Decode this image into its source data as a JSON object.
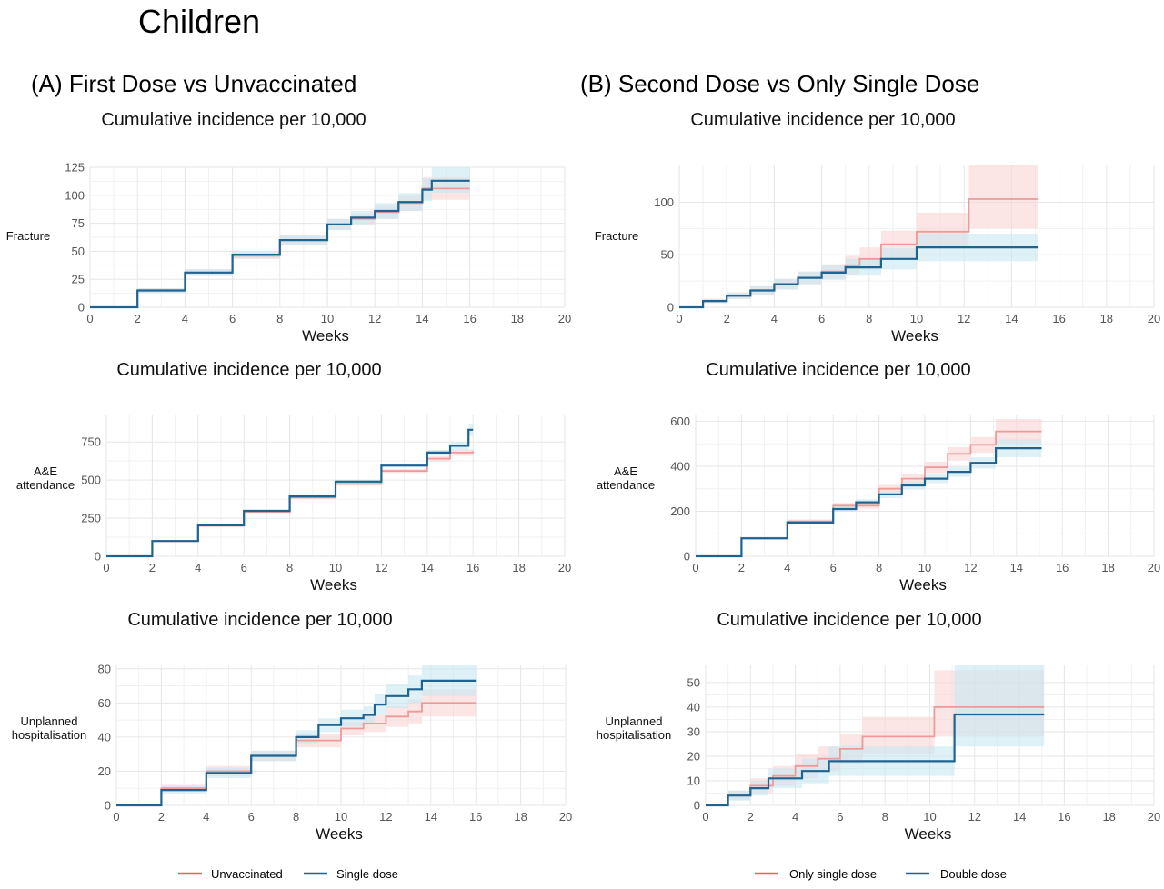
{
  "figure": {
    "title": "Children",
    "panels": [
      {
        "title": "(A) First Dose vs Unvaccinated"
      },
      {
        "title": "(B) Second Dose vs Only Single Dose"
      }
    ],
    "legends": [
      {
        "items": [
          {
            "label": "Unvaccinated",
            "color": "#e06666"
          },
          {
            "label": "Single dose",
            "color": "#1f6391"
          }
        ]
      },
      {
        "items": [
          {
            "label": "Only single dose",
            "color": "#e06666"
          },
          {
            "label": "Double dose",
            "color": "#1f6391"
          }
        ]
      }
    ]
  },
  "colors": {
    "red_line": "#ee9a9a",
    "red_band": "#f9d3d3",
    "blue_line": "#1f6391",
    "blue_band": "#c6e8f2",
    "grid": "#e6e6e6",
    "legend_red": "#e06666",
    "legend_blue": "#1f6391"
  },
  "chart_data": [
    {
      "type": "line",
      "step": true,
      "title": "Cumulative incidence per 10,000",
      "xlabel": "Weeks",
      "ylabel": "Fracture",
      "xlim": [
        0,
        20
      ],
      "ylim": [
        0,
        125
      ],
      "xticks": [
        0,
        2,
        4,
        6,
        8,
        10,
        12,
        14,
        16,
        18,
        20
      ],
      "yticks": [
        0,
        25,
        50,
        75,
        100,
        125
      ],
      "series": [
        {
          "name": "Unvaccinated",
          "color": "red",
          "x": [
            0,
            2,
            4,
            6,
            8,
            10,
            11,
            12,
            13,
            14,
            16
          ],
          "y": [
            0,
            15,
            31,
            46,
            60,
            74,
            79,
            85,
            93,
            106,
            106
          ],
          "lo": [
            0,
            13,
            28,
            43,
            56,
            69,
            74,
            79,
            86,
            96,
            96
          ],
          "hi": [
            0,
            17,
            34,
            49,
            64,
            79,
            84,
            91,
            100,
            116,
            116
          ]
        },
        {
          "name": "Single dose",
          "color": "blue",
          "x": [
            0,
            2,
            4,
            6,
            8,
            10,
            11,
            12,
            13,
            14,
            14.4,
            16
          ],
          "y": [
            0,
            15,
            31,
            47,
            60,
            74,
            80,
            86,
            94,
            105,
            113,
            113
          ],
          "lo": [
            0,
            13,
            28,
            44,
            56,
            69,
            74,
            79,
            86,
            95,
            102,
            102
          ],
          "hi": [
            0,
            17,
            34,
            50,
            64,
            79,
            86,
            93,
            102,
            115,
            125,
            125
          ]
        }
      ]
    },
    {
      "type": "line",
      "step": true,
      "title": "Cumulative incidence per 10,000",
      "xlabel": "Weeks",
      "ylabel": "Fracture",
      "xlim": [
        0,
        20
      ],
      "ylim": [
        0,
        135
      ],
      "xticks": [
        0,
        2,
        4,
        6,
        8,
        10,
        12,
        14,
        16,
        18,
        20
      ],
      "yticks": [
        0,
        50,
        100
      ],
      "series": [
        {
          "name": "Only single dose",
          "color": "red",
          "x": [
            0,
            1,
            2,
            3,
            4,
            5,
            6,
            7,
            7.6,
            8.5,
            10,
            12.2,
            15.1
          ],
          "y": [
            0,
            6,
            11,
            16,
            22,
            28,
            34,
            40,
            46,
            60,
            72,
            103,
            103
          ],
          "lo": [
            0,
            4,
            8,
            12,
            17,
            22,
            27,
            31,
            36,
            47,
            56,
            75,
            75
          ],
          "hi": [
            0,
            8,
            14,
            20,
            27,
            34,
            41,
            49,
            57,
            73,
            90,
            135,
            135
          ]
        },
        {
          "name": "Double dose",
          "color": "blue",
          "x": [
            0,
            1,
            2,
            3,
            4,
            5,
            6,
            7,
            8.5,
            10,
            15.1
          ],
          "y": [
            0,
            6,
            11,
            16,
            22,
            28,
            33,
            38,
            46,
            57,
            57
          ],
          "lo": [
            0,
            4,
            8,
            12,
            17,
            22,
            26,
            30,
            36,
            44,
            44
          ],
          "hi": [
            0,
            8,
            14,
            20,
            27,
            34,
            40,
            46,
            56,
            70,
            70
          ]
        }
      ]
    },
    {
      "type": "line",
      "step": true,
      "title": "Cumulative incidence per 10,000",
      "xlabel": "Weeks",
      "ylabel": "A&E attendance",
      "xlim": [
        0,
        20
      ],
      "ylim": [
        0,
        930
      ],
      "xticks": [
        0,
        2,
        4,
        6,
        8,
        10,
        12,
        14,
        16,
        18,
        20
      ],
      "yticks": [
        0,
        250,
        500,
        750
      ],
      "series": [
        {
          "name": "Unvaccinated",
          "color": "red",
          "x": [
            0,
            2,
            4,
            6,
            8,
            10,
            12,
            14,
            15,
            16
          ],
          "y": [
            0,
            100,
            200,
            292,
            385,
            475,
            560,
            640,
            680,
            690
          ],
          "lo": [
            0,
            96,
            194,
            284,
            376,
            464,
            547,
            622,
            658,
            664
          ],
          "hi": [
            0,
            104,
            206,
            300,
            394,
            486,
            573,
            658,
            702,
            716
          ]
        },
        {
          "name": "Single dose",
          "color": "blue",
          "x": [
            0,
            2,
            4,
            6,
            8,
            10,
            12,
            14,
            15,
            15.8,
            16
          ],
          "y": [
            0,
            100,
            203,
            298,
            393,
            490,
            595,
            680,
            725,
            830,
            830
          ],
          "lo": [
            0,
            96,
            197,
            290,
            384,
            479,
            582,
            662,
            700,
            790,
            790
          ],
          "hi": [
            0,
            104,
            209,
            306,
            402,
            501,
            608,
            698,
            750,
            870,
            870
          ]
        }
      ]
    },
    {
      "type": "line",
      "step": true,
      "title": "Cumulative incidence per 10,000",
      "xlabel": "Weeks",
      "ylabel": "A&E attendance",
      "xlim": [
        0,
        20
      ],
      "ylim": [
        0,
        630
      ],
      "xticks": [
        0,
        2,
        4,
        6,
        8,
        10,
        12,
        14,
        16,
        18,
        20
      ],
      "yticks": [
        0,
        200,
        400,
        600
      ],
      "series": [
        {
          "name": "Only single dose",
          "color": "red",
          "x": [
            0,
            2,
            4,
            6,
            8,
            9,
            10,
            11,
            12,
            13.1,
            15.1
          ],
          "y": [
            0,
            80,
            155,
            225,
            300,
            345,
            395,
            455,
            495,
            555,
            555
          ],
          "lo": [
            0,
            74,
            146,
            212,
            283,
            324,
            370,
            425,
            460,
            500,
            500
          ],
          "hi": [
            0,
            86,
            164,
            238,
            317,
            366,
            420,
            485,
            530,
            610,
            610
          ]
        },
        {
          "name": "Double dose",
          "color": "blue",
          "x": [
            0,
            2,
            4,
            6,
            7,
            8,
            9,
            10,
            11,
            12,
            13.1,
            15.1
          ],
          "y": [
            0,
            80,
            150,
            210,
            240,
            275,
            315,
            345,
            375,
            415,
            480,
            480
          ],
          "lo": [
            0,
            74,
            141,
            198,
            226,
            259,
            297,
            325,
            353,
            390,
            440,
            440
          ],
          "hi": [
            0,
            86,
            159,
            222,
            254,
            291,
            333,
            365,
            397,
            440,
            520,
            520
          ]
        }
      ]
    },
    {
      "type": "line",
      "step": true,
      "title": "Cumulative incidence per 10,000",
      "xlabel": "Weeks",
      "ylabel": "Unplanned hospitalisation",
      "xlim": [
        0,
        20
      ],
      "ylim": [
        0,
        82
      ],
      "xticks": [
        0,
        2,
        4,
        6,
        8,
        10,
        12,
        14,
        16,
        18,
        20
      ],
      "yticks": [
        0,
        20,
        40,
        60,
        80
      ],
      "series": [
        {
          "name": "Unvaccinated",
          "color": "red",
          "x": [
            0,
            2,
            4,
            6,
            8,
            10,
            11,
            12,
            13,
            13.6,
            16
          ],
          "y": [
            0,
            10,
            20,
            29,
            38,
            45,
            48,
            52,
            55,
            60,
            60
          ],
          "lo": [
            0,
            8,
            17,
            26,
            34,
            41,
            43,
            46,
            48,
            52,
            52
          ],
          "hi": [
            0,
            12,
            23,
            32,
            42,
            49,
            53,
            58,
            62,
            68,
            68
          ]
        },
        {
          "name": "Single dose",
          "color": "blue",
          "x": [
            0,
            2,
            4,
            6,
            8,
            9,
            10,
            11,
            11.5,
            12,
            13,
            13.6,
            16
          ],
          "y": [
            0,
            9,
            19,
            29,
            40,
            47,
            51,
            53,
            59,
            64,
            68,
            73,
            73
          ],
          "lo": [
            0,
            7,
            16,
            26,
            36,
            43,
            46,
            48,
            53,
            57,
            60,
            64,
            64
          ],
          "hi": [
            0,
            11,
            22,
            32,
            44,
            51,
            56,
            58,
            65,
            71,
            76,
            82,
            82
          ]
        }
      ]
    },
    {
      "type": "line",
      "step": true,
      "title": "Cumulative incidence per 10,000",
      "xlabel": "Weeks",
      "ylabel": "Unplanned hospitalisation",
      "xlim": [
        0,
        20
      ],
      "ylim": [
        0,
        57
      ],
      "xticks": [
        0,
        2,
        4,
        6,
        8,
        10,
        12,
        14,
        16,
        18,
        20
      ],
      "yticks": [
        0,
        10,
        20,
        30,
        40,
        50
      ],
      "series": [
        {
          "name": "Only single dose",
          "color": "red",
          "x": [
            0,
            1,
            2,
            3,
            4,
            5,
            6,
            7,
            10.2,
            15.1
          ],
          "y": [
            0,
            4,
            8,
            12,
            16,
            19,
            23,
            28,
            40,
            40
          ],
          "lo": [
            0,
            2,
            5,
            8,
            11,
            14,
            17,
            21,
            28,
            28
          ],
          "hi": [
            0,
            6,
            11,
            16,
            21,
            24,
            29,
            36,
            55,
            55
          ]
        },
        {
          "name": "Double dose",
          "color": "blue",
          "x": [
            0,
            1,
            2,
            2.8,
            4.3,
            5.5,
            11.1,
            15.1
          ],
          "y": [
            0,
            4,
            7,
            11,
            14,
            18,
            37,
            37
          ],
          "lo": [
            0,
            2,
            4,
            7,
            9,
            12,
            24,
            24
          ],
          "hi": [
            0,
            6,
            10,
            15,
            19,
            24,
            57,
            57
          ]
        }
      ]
    }
  ]
}
